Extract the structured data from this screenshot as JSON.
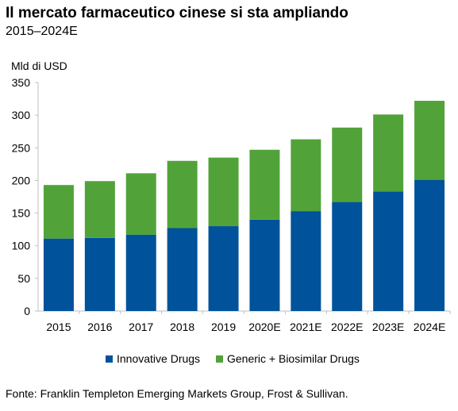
{
  "header": {
    "title": "Il mercato farmaceutico cinese si sta ampliando",
    "subtitle": "2015–2024E"
  },
  "colors": {
    "innovative": "#00529B",
    "generic": "#51A339",
    "axis": "#bfbfbf"
  },
  "chart_data": {
    "type": "bar",
    "stacked": true,
    "ylabel": "Mld di USD",
    "xlabel": "",
    "ylim": [
      0,
      350
    ],
    "yticks": [
      0,
      50,
      100,
      150,
      200,
      250,
      300,
      350
    ],
    "grid": false,
    "legend_position": "bottom",
    "categories": [
      "2015",
      "2016",
      "2017",
      "2018",
      "2019",
      "2020E",
      "2021E",
      "2022E",
      "2023E",
      "2024E"
    ],
    "series": [
      {
        "name": "Innovative Drugs",
        "values": [
          111,
          112,
          117,
          127,
          130,
          140,
          153,
          167,
          183,
          201
        ]
      },
      {
        "name": "Generic + Biosimilar Drugs",
        "values": [
          82,
          87,
          94,
          103,
          105,
          107,
          110,
          114,
          118,
          121
        ]
      }
    ]
  },
  "footer": {
    "source": "Fonte: Franklin Templeton Emerging Markets Group, Frost & Sullivan."
  }
}
